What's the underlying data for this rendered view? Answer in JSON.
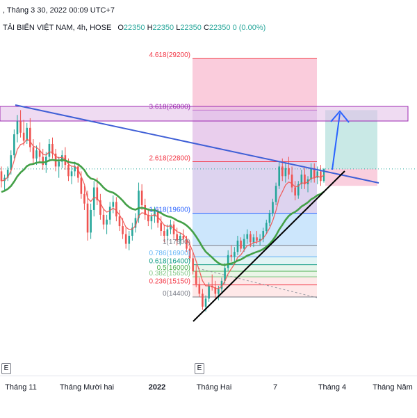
{
  "header": {
    "timestamp": ", Tháng 3 30, 2022 00:09 UTC+7",
    "symbol": "TẢI BIỂN VIỆT NAM, 4h, HOSE",
    "o_label": "O",
    "o_value": "22350",
    "h_label": "H",
    "h_value": "22350",
    "l_label": "L",
    "l_value": "22350",
    "c_label": "C",
    "c_value": "22350",
    "change": "0 (0.00%)"
  },
  "chart_data": {
    "type": "candlestick",
    "title": "",
    "xlabel": "",
    "ylabel": "",
    "ylim": [
      12300,
      30800
    ],
    "x_ticks": [
      "Tháng 11",
      "Tháng Mười hai",
      "2022",
      "Tháng Hai",
      "7",
      "Tháng 4",
      "Tháng Năm"
    ],
    "bold_tick": "2022",
    "event_markers": [
      "E",
      "E"
    ],
    "fib_levels": [
      {
        "ratio": "4.618",
        "price": 29200,
        "label": "4.618(29200)",
        "color": "#f23645",
        "fill": "#f8bbd0"
      },
      {
        "ratio": "3.618",
        "price": 26000,
        "label": "3.618(26000)",
        "color": "#9c27b0",
        "fill": "#e1bee7"
      },
      {
        "ratio": "2.618",
        "price": 22800,
        "label": "2.618(22800)",
        "color": "#f23645",
        "fill": "#d1c4e9"
      },
      {
        "ratio": "1.618",
        "price": 19600,
        "label": "1.618(19600)",
        "color": "#2962ff",
        "fill": "#bbdefb"
      },
      {
        "ratio": "1",
        "price": 17600,
        "label": "1(17600)",
        "color": "#787b86",
        "fill": "#d0e4f7"
      },
      {
        "ratio": "0.786",
        "price": 16900,
        "label": "0.786(16900)",
        "color": "#64b5f6",
        "fill": "#d7f0f0"
      },
      {
        "ratio": "0.618",
        "price": 16400,
        "label": "0.618(16400)",
        "color": "#089981",
        "fill": "#dff2e4"
      },
      {
        "ratio": "0.5",
        "price": 16000,
        "label": "0.5(16000)",
        "color": "#4caf50",
        "fill": "#e4f2df"
      },
      {
        "ratio": "0.382",
        "price": 15650,
        "label": "0.382(15650)",
        "color": "#81c784",
        "fill": "#fde0e0"
      },
      {
        "ratio": "0.236",
        "price": 15150,
        "label": "0.236(15150)",
        "color": "#f23645",
        "fill": "#fde0e0"
      },
      {
        "ratio": "0",
        "price": 14400,
        "label": "0(14400)",
        "color": "#787b86",
        "fill": ""
      }
    ],
    "last_price": 22350,
    "target_price": 26000,
    "stop_price": 21300,
    "candles": [
      [
        22200,
        22500,
        21200,
        21600
      ],
      [
        21600,
        22000,
        21000,
        21800
      ],
      [
        21800,
        22500,
        21600,
        22300
      ],
      [
        22300,
        23500,
        22000,
        23200
      ],
      [
        23200,
        24800,
        23000,
        24500
      ],
      [
        24500,
        25700,
        24000,
        25300
      ],
      [
        25300,
        26000,
        24300,
        24600
      ],
      [
        24600,
        25400,
        23800,
        24100
      ],
      [
        24100,
        25200,
        23900,
        24900
      ],
      [
        24900,
        25500,
        23400,
        23700
      ],
      [
        23700,
        24200,
        22700,
        23000
      ],
      [
        23000,
        23800,
        22600,
        23500
      ],
      [
        23500,
        24000,
        22800,
        23100
      ],
      [
        23100,
        23600,
        22300,
        22600
      ],
      [
        22600,
        23400,
        22100,
        23100
      ],
      [
        23100,
        24200,
        22800,
        23900
      ],
      [
        23900,
        24300,
        23000,
        23300
      ],
      [
        23300,
        23600,
        22200,
        22500
      ],
      [
        22500,
        23100,
        21800,
        22800
      ],
      [
        22800,
        23500,
        22400,
        23200
      ],
      [
        23200,
        23700,
        22300,
        22600
      ],
      [
        22600,
        23000,
        21600,
        21900
      ],
      [
        21900,
        22500,
        21400,
        22200
      ],
      [
        22200,
        22800,
        21900,
        22500
      ],
      [
        22500,
        22700,
        21500,
        21800
      ],
      [
        21800,
        22200,
        20500,
        20800
      ],
      [
        20800,
        21300,
        19800,
        20200
      ],
      [
        20200,
        21000,
        17900,
        18400
      ],
      [
        18400,
        20200,
        18000,
        19800
      ],
      [
        19800,
        21600,
        19400,
        21200
      ],
      [
        21200,
        21800,
        20100,
        20400
      ],
      [
        20400,
        20800,
        19200,
        19500
      ],
      [
        19500,
        19900,
        18600,
        18900
      ],
      [
        18900,
        19500,
        18300,
        19200
      ],
      [
        19200,
        20300,
        18900,
        20000
      ],
      [
        20000,
        20700,
        19600,
        20300
      ],
      [
        20300,
        20600,
        19100,
        19400
      ],
      [
        19400,
        19800,
        18500,
        18800
      ],
      [
        18800,
        19300,
        18000,
        18300
      ],
      [
        18300,
        18700,
        17400,
        17700
      ],
      [
        17700,
        18500,
        17300,
        18200
      ],
      [
        18200,
        19000,
        17900,
        18700
      ],
      [
        18700,
        19600,
        18400,
        19300
      ],
      [
        19300,
        21500,
        19000,
        21000
      ],
      [
        21000,
        21400,
        19800,
        20100
      ],
      [
        20100,
        20500,
        19200,
        19500
      ],
      [
        19500,
        19900,
        18800,
        19100
      ],
      [
        19100,
        19600,
        18600,
        19400
      ],
      [
        19400,
        20000,
        19000,
        19700
      ],
      [
        19700,
        19900,
        18700,
        19000
      ],
      [
        19000,
        19400,
        18200,
        18500
      ],
      [
        18500,
        18900,
        17800,
        18200
      ],
      [
        18200,
        18900,
        17900,
        18600
      ],
      [
        18600,
        19200,
        18300,
        18900
      ],
      [
        18900,
        19100,
        18000,
        18300
      ],
      [
        18300,
        18700,
        17600,
        17900
      ],
      [
        17900,
        18400,
        17600,
        18200
      ],
      [
        18200,
        18600,
        17800,
        18000
      ],
      [
        18000,
        18200,
        17200,
        17400
      ],
      [
        17400,
        17800,
        16600,
        16800
      ],
      [
        16800,
        17200,
        15800,
        16000
      ],
      [
        16000,
        16400,
        15000,
        15200
      ],
      [
        15200,
        15600,
        14400,
        14600
      ],
      [
        14600,
        14900,
        13600,
        13800
      ],
      [
        13800,
        14500,
        13500,
        14300
      ],
      [
        14300,
        15300,
        14100,
        15100
      ],
      [
        15100,
        15800,
        14800,
        15000
      ],
      [
        15000,
        15400,
        14300,
        14600
      ],
      [
        14600,
        15100,
        14200,
        14900
      ],
      [
        14900,
        15600,
        14700,
        15400
      ],
      [
        15400,
        16500,
        15200,
        16200
      ],
      [
        16200,
        17300,
        16000,
        17000
      ],
      [
        17000,
        17600,
        16600,
        16900
      ],
      [
        16900,
        17500,
        16500,
        17200
      ],
      [
        17200,
        18200,
        17000,
        17900
      ],
      [
        17900,
        18100,
        17200,
        17400
      ],
      [
        17400,
        18300,
        17200,
        18000
      ],
      [
        18000,
        18600,
        17700,
        18300
      ],
      [
        18300,
        18500,
        17500,
        17800
      ],
      [
        17800,
        18300,
        17500,
        18100
      ],
      [
        18100,
        18500,
        17700,
        17900
      ],
      [
        17900,
        18300,
        17600,
        18000
      ],
      [
        18000,
        18700,
        17800,
        18500
      ],
      [
        18500,
        19200,
        18300,
        19000
      ],
      [
        19000,
        19800,
        18800,
        19600
      ],
      [
        19600,
        20500,
        19400,
        20300
      ],
      [
        20300,
        21500,
        20100,
        21300
      ],
      [
        21300,
        22800,
        21100,
        22500
      ],
      [
        22500,
        23000,
        21600,
        21900
      ],
      [
        21900,
        22700,
        21500,
        22400
      ],
      [
        22400,
        23100,
        21700,
        22000
      ],
      [
        22000,
        22500,
        20900,
        21200
      ],
      [
        21200,
        21600,
        20400,
        20700
      ],
      [
        20700,
        21600,
        20500,
        21400
      ],
      [
        21400,
        22300,
        21100,
        22000
      ],
      [
        22000,
        22400,
        21100,
        21400
      ],
      [
        21400,
        21900,
        20900,
        21700
      ],
      [
        21700,
        22700,
        21500,
        22400
      ],
      [
        22400,
        22700,
        21500,
        21800
      ],
      [
        21800,
        22500,
        21400,
        22200
      ],
      [
        22200,
        22600,
        21300,
        21600
      ],
      [
        21600,
        22400,
        21500,
        22350
      ]
    ]
  }
}
